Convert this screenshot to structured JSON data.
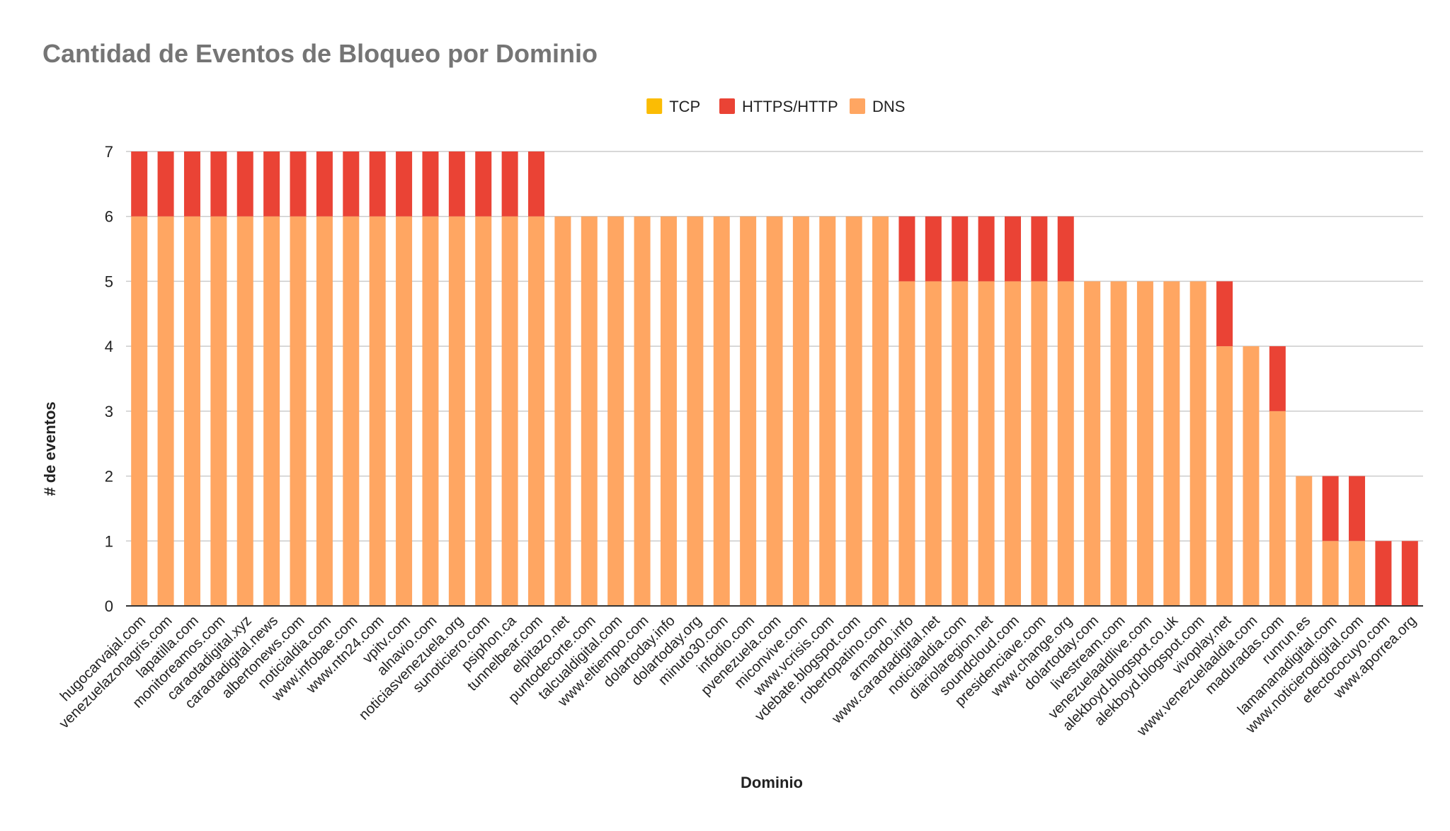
{
  "chart_data": {
    "type": "bar",
    "stacked": true,
    "title": "Cantidad de Eventos de Bloqueo por Dominio",
    "xlabel": "Dominio",
    "ylabel": "# de eventos",
    "ylim": [
      0,
      7
    ],
    "yticks": [
      "0",
      "1",
      "2",
      "3",
      "4",
      "5",
      "6",
      "7"
    ],
    "grid": true,
    "legend_position": "top-center",
    "categories": [
      "hugocarvajal.com",
      "venezuelazonagris.com",
      "lapatilla.com",
      "monitoreamos.com",
      "caraotadigital.xyz",
      "caraotadigital.news",
      "albertonews.com",
      "noticialdia.com",
      "www.infobae.com",
      "www.ntn24.com",
      "vpitv.com",
      "alnavio.com",
      "noticiasvenezuela.org",
      "sunoticiero.com",
      "psiphon.ca",
      "tunnelbear.com",
      "elpitazo.net",
      "puntodecorte.com",
      "talcualdigital.com",
      "www.eltiempo.com",
      "dolartoday.info",
      "dolartoday.org",
      "minuto30.com",
      "infodio.com",
      "pvenezuela.com",
      "miconvive.com",
      "www.vcrisis.com",
      "vdebate.blogspot.com",
      "robertopatino.com",
      "armando.info",
      "www.caraotadigital.net",
      "noticiaaldia.com",
      "diariolaregion.net",
      "soundcloud.com",
      "presidenciave.com",
      "www.change.org",
      "dolartoday.com",
      "livestream.com",
      "venezuelaaldlive.com",
      "alekboyd.blogspot.co.uk",
      "alekboyd.blogspot.com",
      "vivoplay.net",
      "www.venezuelaaldia.com",
      "maduradas.com",
      "runrun.es",
      "lamananadigital.com",
      "www.noticierodigital.com",
      "efectococuyo.com",
      "www.aporrea.org"
    ],
    "series": [
      {
        "name": "TCP",
        "color": "#fbbc04",
        "values": [
          0,
          0,
          0,
          0,
          0,
          0,
          0,
          0,
          0,
          0,
          0,
          0,
          0,
          0,
          0,
          0,
          0,
          0,
          0,
          0,
          0,
          0,
          0,
          0,
          0,
          0,
          0,
          0,
          0,
          0,
          0,
          0,
          0,
          0,
          0,
          0,
          0,
          0,
          0,
          0,
          0,
          0,
          0,
          0,
          0,
          0,
          0,
          0,
          0
        ]
      },
      {
        "name": "HTTPS/HTTP",
        "color": "#ea4335",
        "values": [
          1,
          1,
          1,
          1,
          1,
          1,
          1,
          1,
          1,
          1,
          1,
          1,
          1,
          1,
          1,
          1,
          0,
          0,
          0,
          0,
          0,
          0,
          0,
          0,
          0,
          0,
          0,
          0,
          0,
          1,
          1,
          1,
          1,
          1,
          1,
          1,
          0,
          0,
          0,
          0,
          0,
          1,
          0,
          1,
          0,
          1,
          1,
          1,
          1
        ]
      },
      {
        "name": "DNS",
        "color": "#ffa662",
        "values": [
          6,
          6,
          6,
          6,
          6,
          6,
          6,
          6,
          6,
          6,
          6,
          6,
          6,
          6,
          6,
          6,
          6,
          6,
          6,
          6,
          6,
          6,
          6,
          6,
          6,
          6,
          6,
          6,
          6,
          5,
          5,
          5,
          5,
          5,
          5,
          5,
          5,
          5,
          5,
          5,
          5,
          4,
          4,
          3,
          2,
          1,
          1,
          0,
          0
        ]
      }
    ]
  }
}
